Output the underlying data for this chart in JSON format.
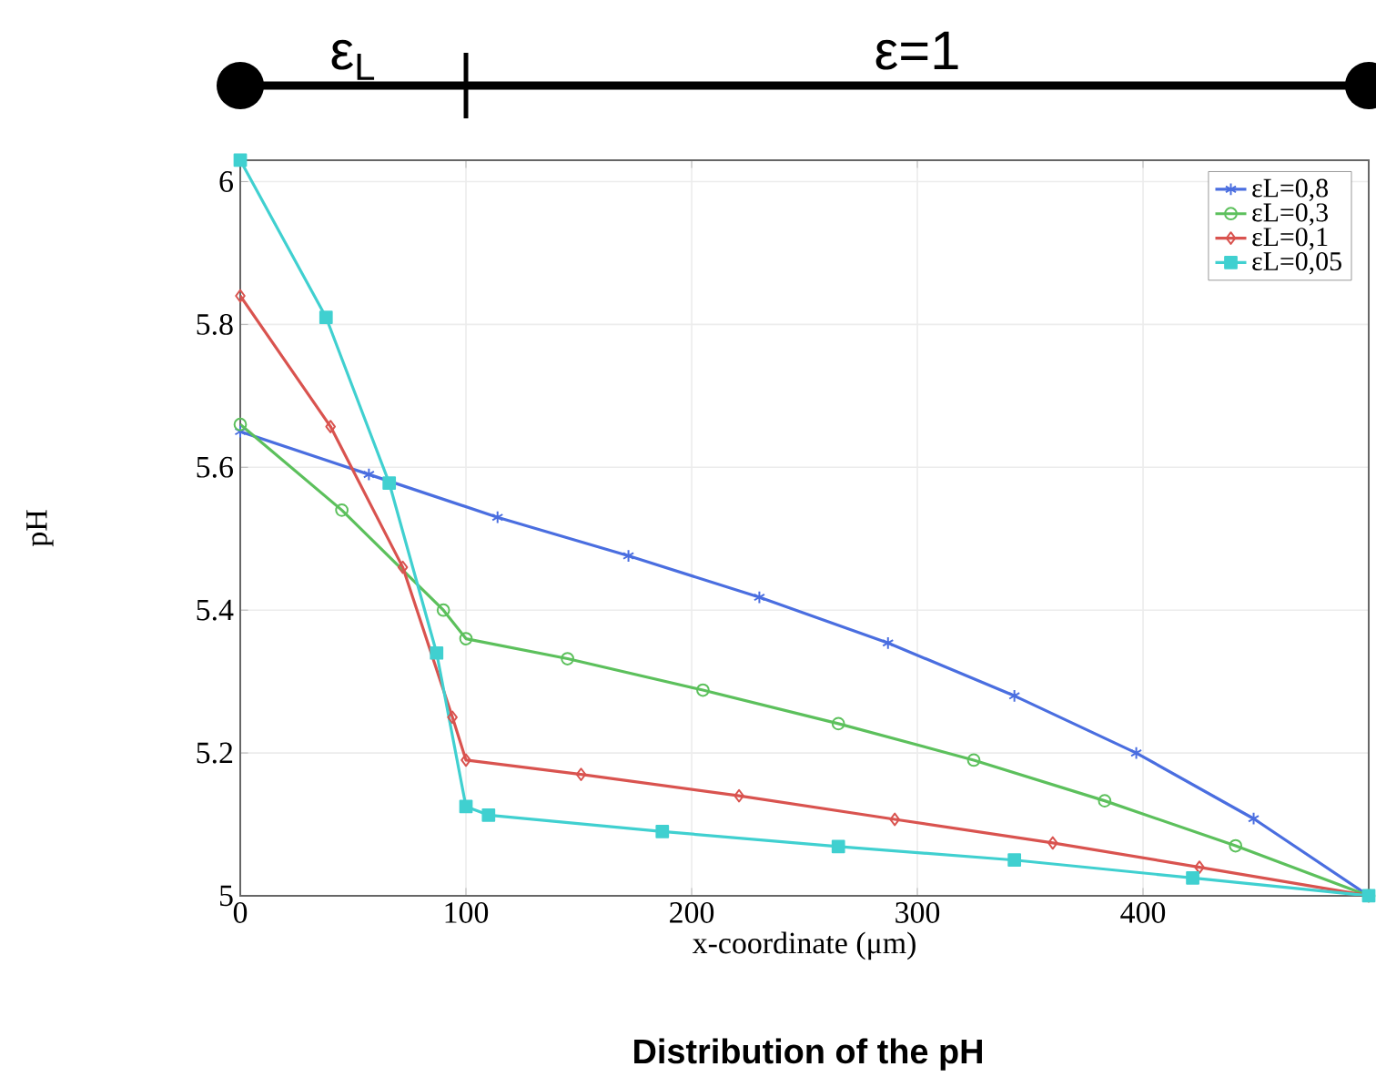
{
  "chart_data": {
    "type": "line",
    "title": "Distribution of the pH",
    "xlabel": "x-coordinate (μm)",
    "ylabel": "pH",
    "annotations": [
      "ε$_{L}$",
      "ε=1"
    ],
    "xlim": [
      0,
      500
    ],
    "ylim": [
      5,
      6.03
    ],
    "xticks": [
      0,
      100,
      200,
      300,
      400
    ],
    "yticks": [
      5,
      5.2,
      5.4,
      5.6,
      5.8,
      6
    ],
    "grid": true,
    "legend": "top right",
    "series": [
      {
        "name": "εL=0,8",
        "color": "#4a6ee0",
        "marker": "cross",
        "x": [
          0,
          57,
          114,
          172,
          230,
          287,
          343,
          397,
          449,
          500
        ],
        "values": [
          5.65,
          5.59,
          5.53,
          5.476,
          5.418,
          5.354,
          5.28,
          5.2,
          5.108,
          5.0
        ]
      },
      {
        "name": "εL=0,3",
        "color": "#5cc05c",
        "marker": "circle",
        "x": [
          0,
          45,
          90,
          100,
          145,
          205,
          265,
          325,
          383,
          441,
          500
        ],
        "values": [
          5.66,
          5.54,
          5.4,
          5.36,
          5.332,
          5.288,
          5.241,
          5.19,
          5.133,
          5.07,
          5.0
        ]
      },
      {
        "name": "εL=0,1",
        "color": "#d9534f",
        "marker": "diamond",
        "x": [
          0,
          40,
          72,
          94,
          100,
          151,
          221,
          290,
          360,
          425,
          500
        ],
        "values": [
          5.84,
          5.657,
          5.46,
          5.25,
          5.19,
          5.17,
          5.14,
          5.107,
          5.074,
          5.04,
          5.0
        ]
      },
      {
        "name": "εL=0,05",
        "color": "#40d0d0",
        "marker": "square",
        "x": [
          0,
          38,
          66,
          87,
          100,
          110,
          187,
          265,
          343,
          422,
          500
        ],
        "values": [
          6.03,
          5.81,
          5.578,
          5.34,
          5.125,
          5.113,
          5.09,
          5.069,
          5.05,
          5.025,
          5.0
        ]
      }
    ]
  }
}
